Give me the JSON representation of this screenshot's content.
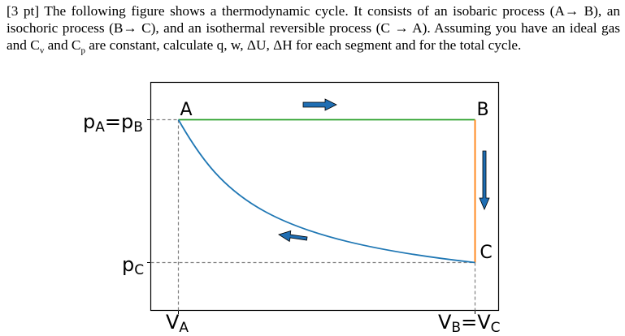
{
  "problem": {
    "points": "[3 pt]",
    "text_a": " The following figure shows a thermodynamic cycle. It consists of an isobaric process (A",
    "arrow_ab": "→",
    "text_b": " B), an isochoric process (B",
    "arrow_bc": "→",
    "text_c": " C), and an isothermal reversible process (C ",
    "arrow_ca": "→",
    "text_d": " A). Assuming you have an ideal gas and C",
    "cv_sub": "v",
    "text_e": " and C",
    "cp_sub": "p",
    "text_f": " are constant, calculate q, w, ΔU, ΔH for each segment and for the total cycle."
  },
  "figure": {
    "points": {
      "a": "A",
      "b": "B",
      "c": "C"
    },
    "p_high": {
      "main": "p",
      "sub1": "A",
      "eq": "=p",
      "sub2": "B"
    },
    "p_low": {
      "main": "p",
      "sub": "C"
    },
    "v_left": {
      "main": "V",
      "sub": "A"
    },
    "v_right": {
      "main": "V",
      "sub1": "B",
      "eq": "=V",
      "sub2": "C"
    },
    "colors": {
      "isobaric": "#2ca02c",
      "isochoric": "#ff7f0e",
      "isothermal": "#1f77b4",
      "arrow": "#1f6eb3",
      "guide": "#7f7f7f"
    }
  }
}
